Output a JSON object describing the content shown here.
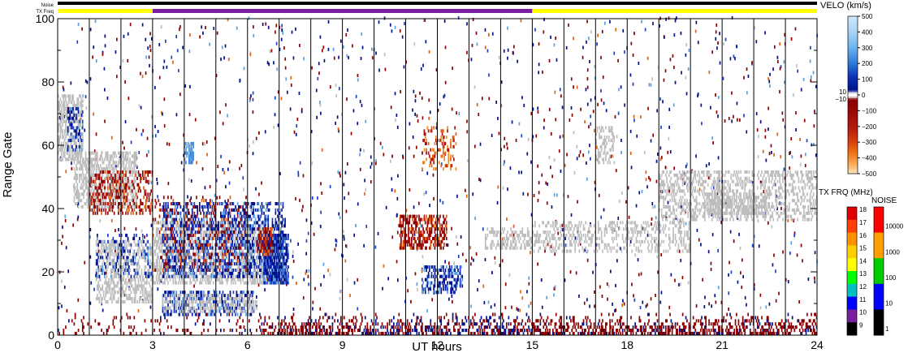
{
  "chart_data": {
    "type": "heatmap",
    "xlabel": "UT hours",
    "ylabel": "Range Gate",
    "xlim": [
      0,
      24
    ],
    "ylim": [
      0,
      100
    ],
    "x_ticks": [
      "0",
      "3",
      "6",
      "9",
      "12",
      "15",
      "18",
      "21",
      "24"
    ],
    "y_ticks": [
      "0",
      "20",
      "40",
      "60",
      "80",
      "100"
    ],
    "grid_lines_x": [
      1,
      2,
      3,
      4,
      5,
      6,
      7,
      8,
      9,
      10,
      11,
      12,
      13,
      14,
      15,
      16,
      17,
      18,
      19,
      20,
      21,
      22,
      23
    ],
    "top_bars": {
      "noise_label": "Noise",
      "txfreq_label": "TX Freq",
      "noise_color": "#000000",
      "txfreq_segments": [
        {
          "from": 0,
          "to": 3,
          "color": "#ffff00"
        },
        {
          "from": 3,
          "to": 15,
          "color": "#7a1fa0"
        },
        {
          "from": 15,
          "to": 24,
          "color": "#ffff00"
        }
      ]
    },
    "velocity_scale": {
      "title": "VELO (km/s)",
      "ticks": [
        "500",
        "400",
        "300",
        "200",
        "100",
        "0",
        "−100",
        "−200",
        "−300",
        "−400",
        "−500"
      ],
      "inner_ticks": [
        "10",
        "−10"
      ]
    },
    "txfreq_scale": {
      "title": "TX FRQ (MHz)",
      "ticks": [
        "18",
        "17",
        "16",
        "15",
        "14",
        "13",
        "12",
        "11",
        "10",
        "9"
      ],
      "colors": [
        "#e00000",
        "#ff4000",
        "#ff9000",
        "#ffd000",
        "#ffff00",
        "#00ff00",
        "#00c0c0",
        "#0000ff",
        "#7a1fa0",
        "#000000"
      ]
    },
    "noise_scale": {
      "title": "NOISE",
      "ticks": [
        "10000",
        "1000",
        "100",
        "10",
        "1"
      ],
      "colors": [
        "#ff0000",
        "#ffa000",
        "#00cc00",
        "#0000ff",
        "#000000"
      ]
    },
    "colors": {
      "ground_scatter": "#bebebe",
      "dark_red": "#8b0000",
      "red": "#b01010",
      "dark_blue": "#00108b",
      "blue": "#1e3fc8",
      "light_blue": "#5aa0e0",
      "orange": "#e06010"
    },
    "regions": [
      {
        "name": "early-morning gs",
        "kind": "gs",
        "x": [
          0.0,
          0.8
        ],
        "y": [
          55,
          76
        ],
        "density": 0.55
      },
      {
        "name": "early-morning gs tail",
        "kind": "gs",
        "x": [
          0.5,
          2.5
        ],
        "y": [
          40,
          58
        ],
        "density": 0.5
      },
      {
        "name": "early red band",
        "kind": "neg",
        "x": [
          1.0,
          3.0
        ],
        "y": [
          38,
          52
        ],
        "density": 0.35
      },
      {
        "name": "early blue patch",
        "kind": "pos",
        "x": [
          0.3,
          0.8
        ],
        "y": [
          58,
          72
        ],
        "density": 0.35
      },
      {
        "name": "morning gs lower",
        "kind": "gs",
        "x": [
          1.2,
          3.0
        ],
        "y": [
          10,
          30
        ],
        "density": 0.45
      },
      {
        "name": "morning blue lower",
        "kind": "pos",
        "x": [
          1.2,
          3.0
        ],
        "y": [
          18,
          32
        ],
        "density": 0.18
      },
      {
        "name": "main gs band",
        "kind": "gs",
        "x": [
          3.0,
          6.6
        ],
        "y": [
          16,
          36
        ],
        "density": 0.5
      },
      {
        "name": "main blue band",
        "kind": "pos",
        "x": [
          3.3,
          7.2
        ],
        "y": [
          18,
          42
        ],
        "density": 0.35
      },
      {
        "name": "lower blue band",
        "kind": "pos",
        "x": [
          3.3,
          6.2
        ],
        "y": [
          6,
          14
        ],
        "density": 0.45
      },
      {
        "name": "lower gs band",
        "kind": "gs",
        "x": [
          3.3,
          6.3
        ],
        "y": [
          7,
          13
        ],
        "density": 0.35
      },
      {
        "name": "dark blue core",
        "kind": "pos",
        "x": [
          6.5,
          7.3
        ],
        "y": [
          16,
          32
        ],
        "density": 0.75
      },
      {
        "name": "red knot",
        "kind": "neg",
        "x": [
          6.3,
          6.8
        ],
        "y": [
          25,
          34
        ],
        "density": 0.5
      },
      {
        "name": "red scatter mid",
        "kind": "neg",
        "x": [
          3.0,
          6.0
        ],
        "y": [
          20,
          44
        ],
        "density": 0.12
      },
      {
        "name": "afternoon red patch",
        "kind": "neg",
        "x": [
          10.8,
          12.3
        ],
        "y": [
          27,
          38
        ],
        "density": 0.55
      },
      {
        "name": "afternoon blue patch",
        "kind": "pos",
        "x": [
          11.5,
          12.8
        ],
        "y": [
          13,
          22
        ],
        "density": 0.45
      },
      {
        "name": "afternoon gs band",
        "kind": "gs",
        "x": [
          13.5,
          15.0
        ],
        "y": [
          27,
          34
        ],
        "density": 0.4
      },
      {
        "name": "evening gs band",
        "kind": "gs",
        "x": [
          15.0,
          20.0
        ],
        "y": [
          26,
          36
        ],
        "density": 0.3
      },
      {
        "name": "evening gs upper",
        "kind": "gs",
        "x": [
          19.0,
          24.0
        ],
        "y": [
          36,
          52
        ],
        "density": 0.35
      },
      {
        "name": "evening gs streak",
        "kind": "gs",
        "x": [
          20.5,
          22.5
        ],
        "y": [
          38,
          45
        ],
        "density": 0.55
      },
      {
        "name": "orange cluster",
        "kind": "orange",
        "x": [
          11.5,
          12.6
        ],
        "y": [
          52,
          66
        ],
        "density": 0.25
      },
      {
        "name": "light blue patch",
        "kind": "light",
        "x": [
          4.0,
          4.3
        ],
        "y": [
          54,
          61
        ],
        "density": 0.6
      },
      {
        "name": "light gs 17h",
        "kind": "gs",
        "x": [
          17.0,
          17.6
        ],
        "y": [
          54,
          66
        ],
        "density": 0.3
      }
    ],
    "bottom_band": {
      "x": [
        0,
        24
      ],
      "y": [
        0,
        7
      ],
      "density": 0.55
    }
  }
}
